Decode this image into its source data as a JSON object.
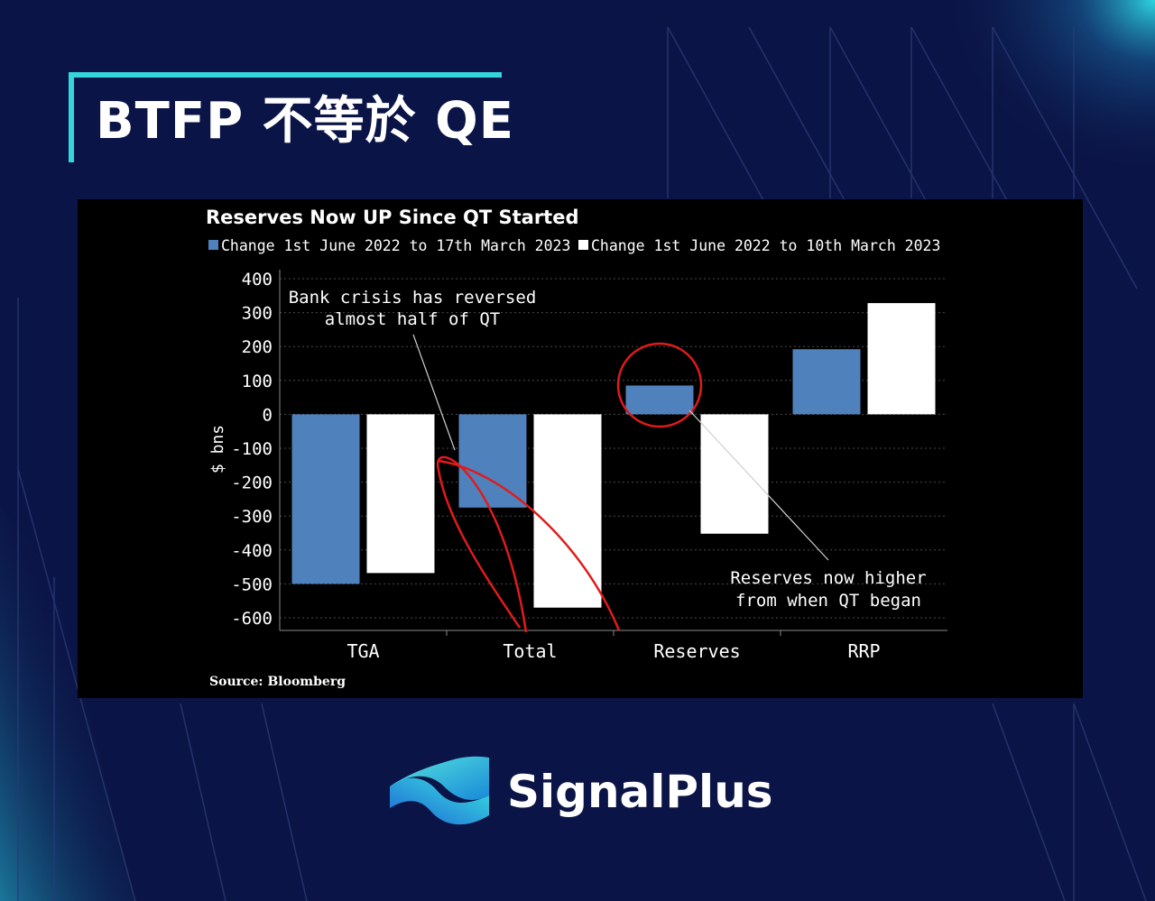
{
  "header": {
    "title": "BTFP 不等於 QE"
  },
  "brand": {
    "name": "SignalPlus",
    "icon": "signalplus-logo-icon"
  },
  "colors": {
    "background": "#0b1446",
    "accent": "#34d6dc",
    "series_blue": "#4f81bd",
    "series_white": "#ffffff",
    "circle_red": "#e01b1b"
  },
  "chart_data": {
    "type": "bar",
    "title": "Reserves Now UP Since QT Started",
    "ylabel": "$ bns",
    "xlabel": "",
    "ylim": [
      -620,
      420
    ],
    "yticks": [
      400,
      300,
      200,
      100,
      0,
      -100,
      -200,
      -300,
      -400,
      -500,
      -600
    ],
    "categories": [
      "TGA",
      "Total",
      "Reserves",
      "RRP"
    ],
    "series": [
      {
        "name": "Change 1st June 2022 to 17th March 2023",
        "color": "#4f81bd",
        "values": [
          -500,
          -275,
          85,
          192
        ]
      },
      {
        "name": "Change 1st June 2022 to 10th March 2023",
        "color": "#ffffff",
        "values": [
          -468,
          -570,
          -352,
          328
        ]
      }
    ],
    "annotations": [
      {
        "lines": [
          "Bank crisis has reversed",
          "almost half of QT"
        ]
      },
      {
        "lines": [
          "Reserves now higher",
          "from when QT began"
        ]
      }
    ],
    "source": "Source: Bloomberg",
    "grid": true,
    "legend": "top"
  }
}
